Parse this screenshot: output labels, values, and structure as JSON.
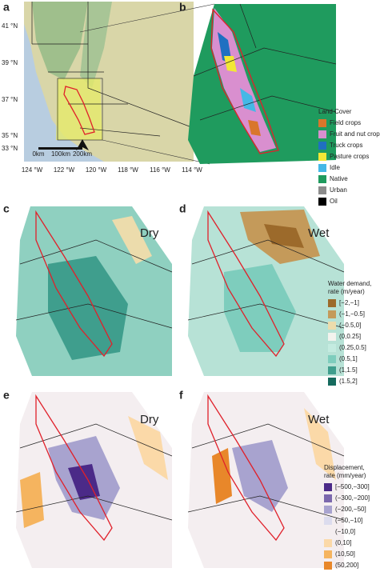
{
  "panel_labels": [
    "a",
    "b",
    "c",
    "d",
    "e",
    "f"
  ],
  "map_a": {
    "lat_labels": [
      "41 °N",
      "39 °N",
      "37 °N",
      "35 °N",
      "33 °N"
    ],
    "lon_labels": [
      "124 °W",
      "122 °W",
      "120 °W",
      "118 °W",
      "116 °W",
      "114 °W"
    ],
    "scale_labels": [
      "0km",
      "100km",
      "200km"
    ]
  },
  "conditions": [
    "Dry",
    "Wet",
    "Dry",
    "Wet"
  ],
  "land_cover": {
    "title": "Land Cover",
    "items": [
      {
        "label": "Field crops",
        "color": "#d9762b"
      },
      {
        "label": "Fruit and nut crops",
        "color": "#d98fcf"
      },
      {
        "label": "Truck crops",
        "color": "#1f70c1"
      },
      {
        "label": "Pasture crops",
        "color": "#f2e836"
      },
      {
        "label": "Idle",
        "color": "#45b8e6"
      },
      {
        "label": "Native",
        "color": "#1f9b5e"
      },
      {
        "label": "Urban",
        "color": "#8c8c8c"
      },
      {
        "label": "Oil",
        "color": "#000000"
      }
    ]
  },
  "water_demand": {
    "title": [
      "Water demand,",
      "rate (m/year)"
    ],
    "items": [
      {
        "label": "[−2,−1]",
        "color": "#9c6a2b"
      },
      {
        "label": "(−1,−0.5]",
        "color": "#c49a5a"
      },
      {
        "label": "(−0.5,0]",
        "color": "#ecdcac"
      },
      {
        "label": "(0,0.25]",
        "color": "#f3f3ee"
      },
      {
        "label": "(0.25,0.5]",
        "color": "#c4ebe0"
      },
      {
        "label": "(0.5,1]",
        "color": "#7ecdbd"
      },
      {
        "label": "(1,1.5]",
        "color": "#3f9e8d"
      },
      {
        "label": "(1.5,2]",
        "color": "#166b5e"
      }
    ]
  },
  "displacement": {
    "title": [
      "Displacement,",
      "rate (mm/year)"
    ],
    "items": [
      {
        "label": "[−500,−300]",
        "color": "#4b2a88"
      },
      {
        "label": "(−300,−200]",
        "color": "#7b68ad"
      },
      {
        "label": "(−200,−50]",
        "color": "#a8a3cf"
      },
      {
        "label": "(−50,−10]",
        "color": "#dcdcee"
      },
      {
        "label": "(−10,0]",
        "color": "#f4eef0"
      },
      {
        "label": "(0,10]",
        "color": "#fbd9a8"
      },
      {
        "label": "(10,50]",
        "color": "#f5b45f"
      },
      {
        "label": "(50,200]",
        "color": "#e8872a"
      }
    ]
  }
}
